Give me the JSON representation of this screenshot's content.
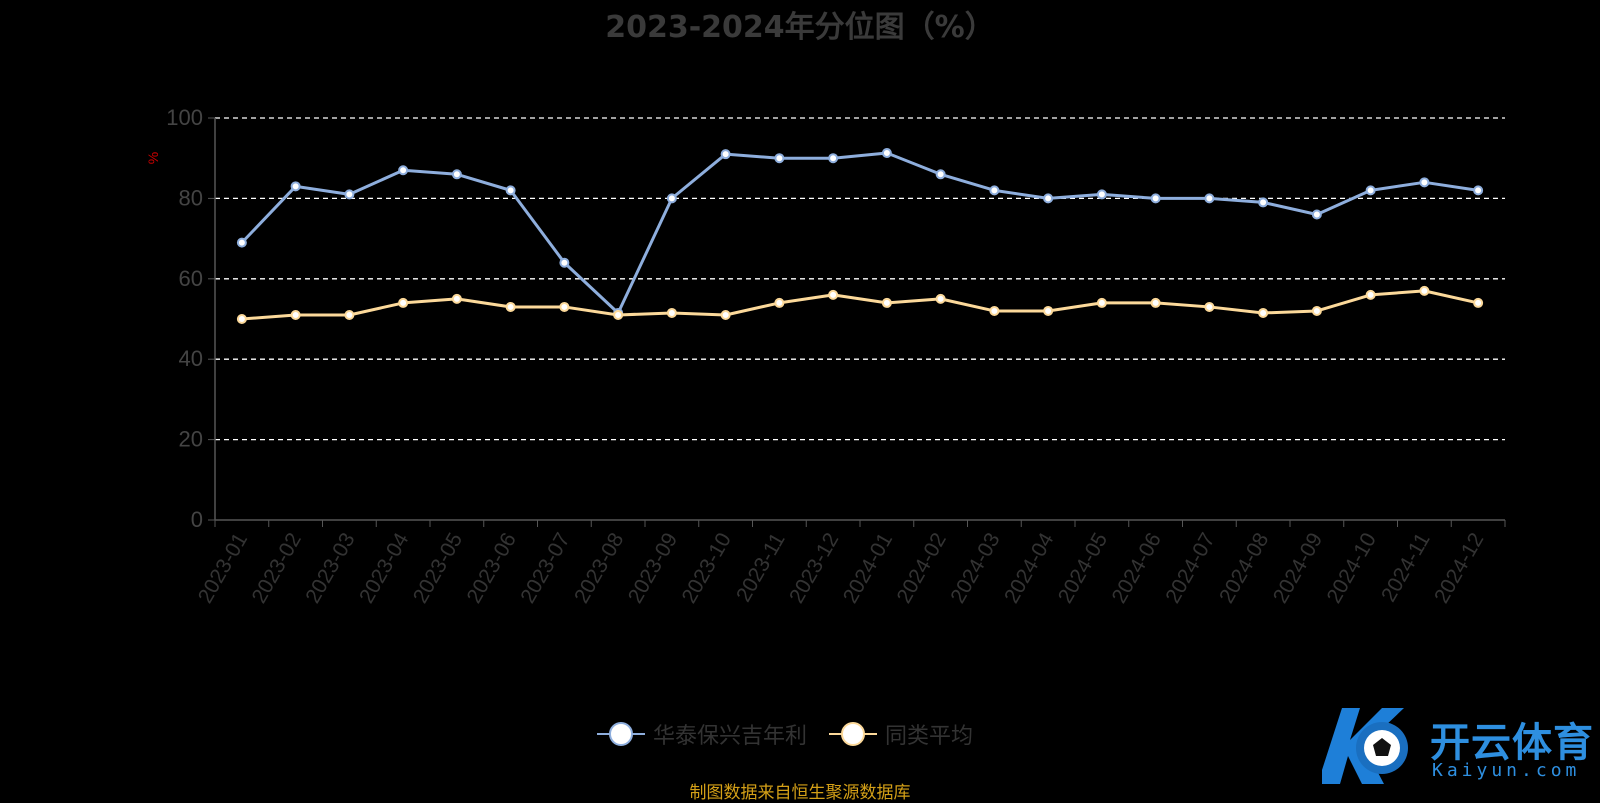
{
  "chart_data": {
    "type": "line",
    "title": "2023-2024年分位图（%）",
    "ylabel": "%",
    "ylim": [
      0,
      100
    ],
    "yticks": [
      0,
      20,
      40,
      60,
      80,
      100
    ],
    "grid": true,
    "legend_position": "bottom",
    "categories": [
      "2023-01",
      "2023-02",
      "2023-03",
      "2023-04",
      "2023-05",
      "2023-06",
      "2023-07",
      "2023-08",
      "2023-09",
      "2023-10",
      "2023-11",
      "2023-12",
      "2024-01",
      "2024-02",
      "2024-03",
      "2024-04",
      "2024-05",
      "2024-06",
      "2024-07",
      "2024-08",
      "2024-09",
      "2024-10",
      "2024-11",
      "2024-12"
    ],
    "series": [
      {
        "name": "华泰保兴吉年利",
        "color": "#8eaedd",
        "values": [
          69,
          83,
          81,
          87,
          86,
          82,
          64,
          51.5,
          80,
          91,
          90,
          90,
          91.3,
          86,
          82,
          80,
          81,
          80,
          80,
          79,
          76,
          82,
          84,
          82
        ]
      },
      {
        "name": "同类平均",
        "color": "#fcd99a",
        "values": [
          50,
          51,
          51,
          54,
          55,
          53,
          53,
          51,
          51.5,
          51,
          54,
          56,
          54,
          55,
          52,
          52,
          54,
          54,
          53,
          51.5,
          52,
          56,
          57,
          54
        ]
      }
    ]
  },
  "source_note": "制图数据来自恒生聚源数据库",
  "logo": {
    "name": "开云体育",
    "subtitle": "Kaiyun.com"
  }
}
